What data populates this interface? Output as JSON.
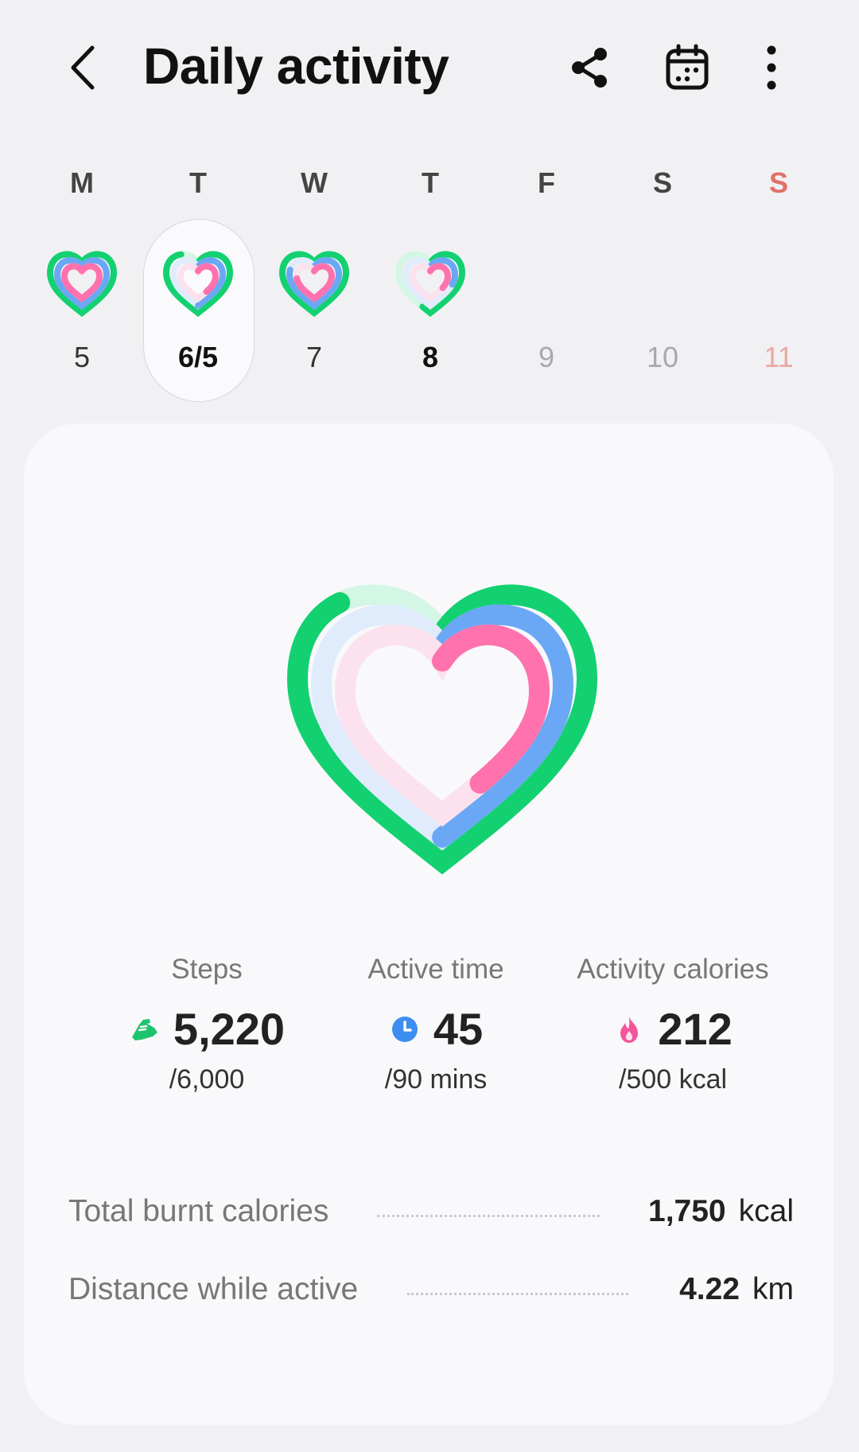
{
  "header": {
    "title": "Daily activity",
    "icons": [
      "back-icon",
      "share-icon",
      "calendar-icon",
      "more-options-icon"
    ]
  },
  "week": {
    "days": [
      {
        "letter": "M",
        "number": "5",
        "has_ring": true,
        "selected": false,
        "style": "normal"
      },
      {
        "letter": "T",
        "number": "6/5",
        "has_ring": true,
        "selected": true,
        "style": "bold"
      },
      {
        "letter": "W",
        "number": "7",
        "has_ring": true,
        "selected": false,
        "style": "normal"
      },
      {
        "letter": "T",
        "number": "8",
        "has_ring": true,
        "selected": false,
        "style": "bold"
      },
      {
        "letter": "F",
        "number": "9",
        "has_ring": false,
        "selected": false,
        "style": "future"
      },
      {
        "letter": "S",
        "number": "10",
        "has_ring": false,
        "selected": false,
        "style": "future"
      },
      {
        "letter": "S",
        "number": "11",
        "has_ring": false,
        "selected": false,
        "style": "future-sunday"
      }
    ]
  },
  "summary": {
    "progress": {
      "steps": 0.87,
      "active_time": 0.5,
      "calories": 0.42
    },
    "stats": [
      {
        "label": "Steps",
        "value": "5,220",
        "goal": "/6,000",
        "icon": "shoe-icon",
        "color": "#1ec46d"
      },
      {
        "label": "Active time",
        "value": "45",
        "goal": "/90 mins",
        "icon": "clock-icon",
        "color": "#3d8ef0"
      },
      {
        "label": "Activity calories",
        "value": "212",
        "goal": "/500 kcal",
        "icon": "flame-icon",
        "color": "#f5559b"
      }
    ],
    "metrics": [
      {
        "label": "Total burnt calories",
        "value": "1,750",
        "unit": "kcal"
      },
      {
        "label": "Distance while active",
        "value": "4.22",
        "unit": "km"
      }
    ]
  },
  "colors": {
    "green": "#13d170",
    "green_track": "#d4f6e4",
    "blue": "#6aa8f5",
    "blue_track": "#e0ecfb",
    "pink": "#ff72ad",
    "pink_track": "#fbe2ee",
    "sunday_red": "#e2706b"
  }
}
